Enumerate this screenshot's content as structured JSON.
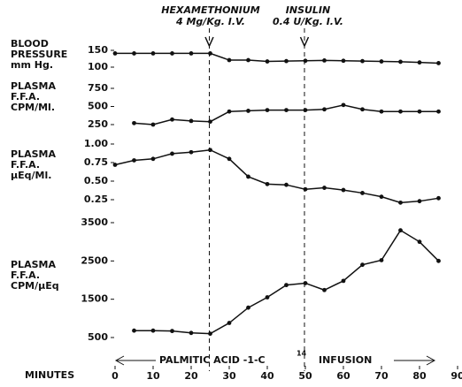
{
  "chart_data": [
    {
      "type": "line",
      "ylabel": [
        "BLOOD",
        "PRESSURE",
        "mm Hg."
      ],
      "x": [
        0,
        5,
        10,
        15,
        20,
        25,
        30,
        35,
        40,
        45,
        50,
        55,
        60,
        65,
        70,
        75,
        80,
        85
      ],
      "values": [
        141,
        141,
        141,
        141,
        141,
        141,
        121,
        121,
        117,
        118,
        119,
        120,
        119,
        118,
        117,
        116,
        114,
        112
      ],
      "ylim": [
        100,
        150
      ],
      "yticks": [
        100,
        150
      ],
      "color": "#111"
    },
    {
      "type": "line",
      "ylabel": [
        "PLASMA",
        "F.F.A.",
        "CPM/Ml."
      ],
      "x": [
        5,
        10,
        15,
        20,
        25,
        30,
        35,
        40,
        45,
        50,
        55,
        60,
        65,
        70,
        75,
        80,
        85
      ],
      "values": [
        270,
        250,
        320,
        300,
        290,
        430,
        440,
        450,
        450,
        450,
        460,
        520,
        460,
        430,
        430,
        430,
        430
      ],
      "ylim": [
        250,
        750
      ],
      "yticks": [
        250,
        500,
        750
      ],
      "color": "#111"
    },
    {
      "type": "line",
      "ylabel": [
        "PLASMA",
        "F.F.A.",
        "μEq/Ml."
      ],
      "x": [
        0,
        5,
        10,
        15,
        20,
        25,
        30,
        35,
        40,
        45,
        50,
        55,
        60,
        65,
        70,
        75,
        80,
        85
      ],
      "values": [
        0.72,
        0.78,
        0.8,
        0.87,
        0.89,
        0.92,
        0.8,
        0.56,
        0.46,
        0.45,
        0.39,
        0.41,
        0.38,
        0.34,
        0.29,
        0.21,
        0.23,
        0.27
      ],
      "ylim": [
        0.25,
        1.0
      ],
      "yticks": [
        {
          "value": 0.25,
          "label": "0.25"
        },
        {
          "value": 0.5,
          "label": "0.50"
        },
        {
          "value": 0.75,
          "label": "0.75"
        },
        {
          "value": 1.0,
          "label": "1.00"
        }
      ],
      "color": "#111"
    },
    {
      "type": "line",
      "ylabel": [
        "PLASMA",
        "F.F.A.",
        "CPM/μEq"
      ],
      "x": [
        5,
        10,
        15,
        20,
        25,
        30,
        35,
        40,
        45,
        50,
        55,
        60,
        65,
        70,
        75,
        80,
        85
      ],
      "values": [
        680,
        680,
        670,
        620,
        600,
        880,
        1280,
        1550,
        1870,
        1920,
        1740,
        1980,
        2400,
        2520,
        3300,
        3000,
        2500
      ],
      "ylim": [
        500,
        3500
      ],
      "yticks": [
        500,
        1500,
        2500,
        3500
      ],
      "color": "#111"
    }
  ],
  "xaxis": {
    "label": "MINUTES",
    "xlim": [
      0,
      90
    ],
    "xticks": [
      0,
      10,
      20,
      30,
      40,
      50,
      60,
      70,
      80,
      90
    ]
  },
  "annotations": {
    "drug1": [
      "HEXAMETHONIUM",
      "4 Mg/Kg. I.V."
    ],
    "drug2": [
      "INSULIN",
      "0.4 U/Kg. I.V."
    ],
    "infusion": {
      "left": "PALMITIC ACID -1-C",
      "superscript": "14",
      "right": "INFUSION"
    }
  }
}
